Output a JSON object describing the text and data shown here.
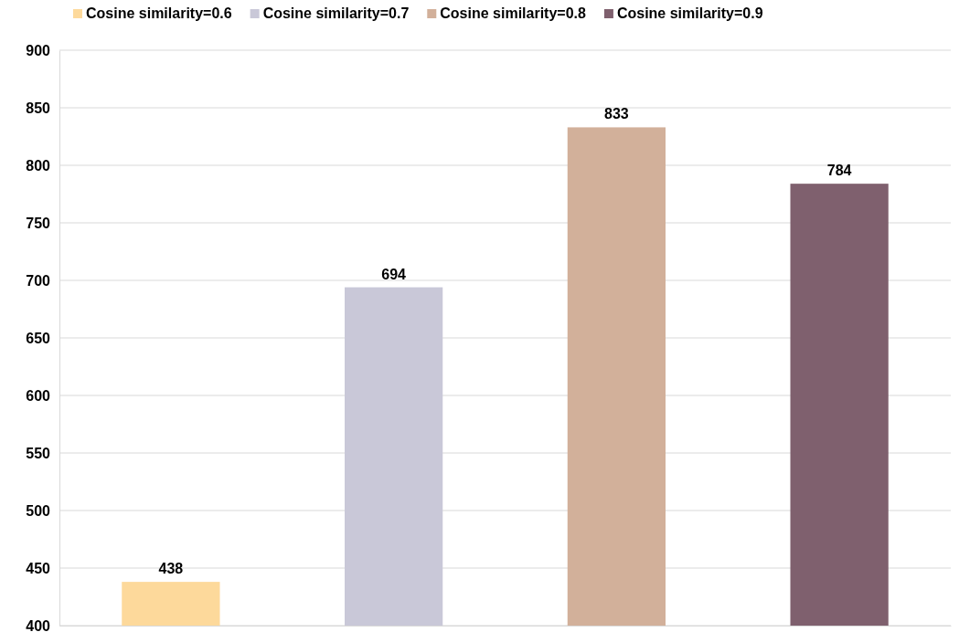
{
  "chart_data": {
    "type": "bar",
    "categories": [
      null,
      null,
      null,
      null
    ],
    "series": [
      {
        "name": "Cosine similarity=0.6",
        "color": "#fdd99b",
        "values": [
          438,
          null,
          null,
          null
        ]
      },
      {
        "name": "Cosine similarity=0.7",
        "color": "#c9c8d8",
        "values": [
          null,
          694,
          null,
          null
        ]
      },
      {
        "name": "Cosine similarity=0.8",
        "color": "#d2b09a",
        "values": [
          null,
          null,
          833,
          null
        ]
      },
      {
        "name": "Cosine similarity=0.9",
        "color": "#7f606e",
        "values": [
          null,
          null,
          null,
          784
        ]
      }
    ],
    "ylim": [
      400,
      900
    ],
    "yticks": [
      400,
      450,
      500,
      550,
      600,
      650,
      700,
      750,
      800,
      850,
      900
    ],
    "grid": "y",
    "legend": "top",
    "data_labels": true
  }
}
